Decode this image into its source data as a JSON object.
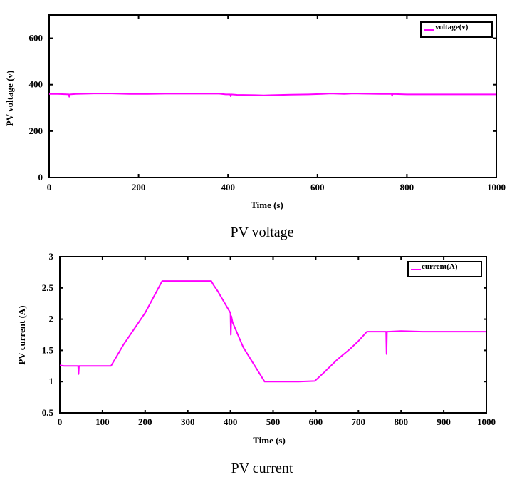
{
  "chart_data": [
    {
      "type": "line",
      "title": "",
      "caption": "PV voltage",
      "xlabel": "Time (s)",
      "ylabel": "PV voltage (v)",
      "xlim": [
        0,
        1000
      ],
      "ylim": [
        0,
        700
      ],
      "xticks": [
        "0",
        "200",
        "400",
        "600",
        "800",
        "1000"
      ],
      "yticks": [
        "0",
        "200",
        "400",
        "600"
      ],
      "grid": false,
      "legend_position": "top-right",
      "color": "#ff00ff",
      "series": [
        {
          "name": "voltage(v)",
          "x": [
            0,
            20,
            44,
            45,
            46,
            60,
            100,
            140,
            180,
            220,
            260,
            300,
            340,
            380,
            395,
            405,
            406,
            407,
            420,
            460,
            480,
            500,
            540,
            580,
            610,
            630,
            660,
            680,
            700,
            740,
            766,
            767,
            768,
            800,
            840,
            880,
            920,
            960,
            1000
          ],
          "y": [
            360,
            360,
            358,
            348,
            358,
            360,
            362,
            362,
            360,
            360,
            361,
            361,
            361,
            361,
            358,
            358,
            350,
            358,
            356,
            355,
            354,
            355,
            357,
            358,
            360,
            362,
            360,
            362,
            361,
            360,
            360,
            352,
            360,
            358,
            358,
            358,
            358,
            358,
            358
          ]
        }
      ]
    },
    {
      "type": "line",
      "title": "",
      "caption": "PV current",
      "xlabel": "Time (s)",
      "ylabel": "PV current (A)",
      "xlim": [
        0,
        1000
      ],
      "ylim": [
        0.5,
        3
      ],
      "xticks": [
        "0",
        "100",
        "200",
        "300",
        "400",
        "500",
        "600",
        "700",
        "800",
        "900",
        "1000"
      ],
      "yticks": [
        "0.5",
        "1",
        "1.5",
        "2",
        "2.5",
        "3"
      ],
      "grid": false,
      "legend_position": "top-right",
      "color": "#ff00ff",
      "series": [
        {
          "name": "current(A)",
          "x": [
            0,
            10,
            43,
            44,
            45,
            120,
            150,
            200,
            240,
            250,
            300,
            355,
            360,
            370,
            400,
            401,
            402,
            405,
            430,
            480,
            490,
            520,
            560,
            598,
            620,
            650,
            680,
            700,
            720,
            760,
            765,
            766,
            767,
            770,
            800,
            850,
            900,
            950,
            1000
          ],
          "y": [
            1.26,
            1.25,
            1.25,
            1.12,
            1.25,
            1.25,
            1.6,
            2.1,
            2.61,
            2.61,
            2.61,
            2.61,
            2.55,
            2.45,
            2.1,
            1.75,
            2.05,
            1.95,
            1.55,
            1.0,
            1.0,
            1.0,
            1.0,
            1.01,
            1.15,
            1.35,
            1.52,
            1.65,
            1.8,
            1.8,
            1.8,
            1.44,
            1.8,
            1.8,
            1.81,
            1.8,
            1.8,
            1.8,
            1.8
          ]
        }
      ]
    }
  ]
}
